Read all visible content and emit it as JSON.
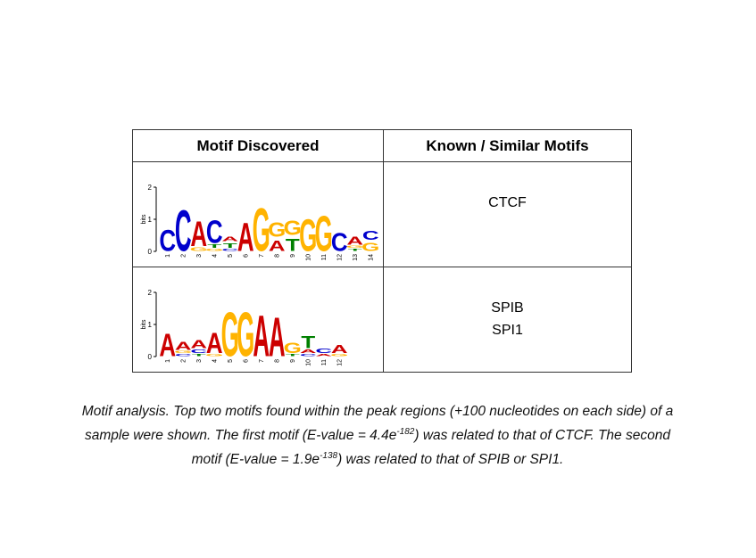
{
  "table": {
    "header_motif": "Motif Discovered",
    "header_known": "Known / Similar Motifs",
    "rows": [
      {
        "known": [
          "CTCF"
        ],
        "logo": {
          "y_label": "bits",
          "y_ticks": [
            "2",
            "1",
            "0"
          ],
          "positions": [
            "1",
            "2",
            "3",
            "4",
            "5",
            "6",
            "7",
            "8",
            "9",
            "10",
            "11",
            "12",
            "13",
            "14"
          ],
          "stacks": [
            [
              [
                "C",
                0.9
              ]
            ],
            [
              [
                "C",
                1.75
              ]
            ],
            [
              [
                "A",
                1.05
              ],
              [
                "G",
                0.15
              ]
            ],
            [
              [
                "C",
                0.95
              ],
              [
                "T",
                0.15
              ],
              [
                "G",
                0.1
              ]
            ],
            [
              [
                "T",
                0.2
              ],
              [
                "A",
                0.2
              ],
              [
                "C",
                0.1
              ]
            ],
            [
              [
                "A",
                1.2
              ]
            ],
            [
              [
                "G",
                1.8
              ]
            ],
            [
              [
                "G",
                0.6
              ],
              [
                "A",
                0.45
              ]
            ],
            [
              [
                "G",
                0.6
              ],
              [
                "T",
                0.5
              ]
            ],
            [
              [
                "G",
                1.35
              ]
            ],
            [
              [
                "G",
                1.5
              ]
            ],
            [
              [
                "C",
                0.75
              ]
            ],
            [
              [
                "A",
                0.35
              ],
              [
                "T",
                0.1
              ],
              [
                "G",
                0.1
              ]
            ],
            [
              [
                "C",
                0.4
              ],
              [
                "G",
                0.35
              ]
            ]
          ]
        }
      },
      {
        "known": [
          "SPIB",
          "SPI1"
        ],
        "logo": {
          "y_label": "bits",
          "y_ticks": [
            "2",
            "1",
            "0"
          ],
          "positions": [
            "1",
            "2",
            "3",
            "4",
            "5",
            "6",
            "7",
            "8",
            "9",
            "10",
            "11",
            "12"
          ],
          "stacks": [
            [
              [
                "A",
                0.95
              ]
            ],
            [
              [
                "A",
                0.35
              ],
              [
                "C",
                0.1
              ],
              [
                "G",
                0.1
              ]
            ],
            [
              [
                "A",
                0.35
              ],
              [
                "C",
                0.15
              ],
              [
                "T",
                0.1
              ]
            ],
            [
              [
                "A",
                0.85
              ],
              [
                "G",
                0.1
              ]
            ],
            [
              [
                "G",
                1.85
              ]
            ],
            [
              [
                "G",
                1.85
              ]
            ],
            [
              [
                "A",
                1.75
              ]
            ],
            [
              [
                "A",
                1.65
              ]
            ],
            [
              [
                "G",
                0.45
              ],
              [
                "T",
                0.1
              ]
            ],
            [
              [
                "T",
                0.5
              ],
              [
                "A",
                0.15
              ],
              [
                "C",
                0.1
              ]
            ],
            [
              [
                "C",
                0.2
              ],
              [
                "A",
                0.1
              ]
            ],
            [
              [
                "A",
                0.35
              ],
              [
                "G",
                0.1
              ]
            ]
          ]
        }
      }
    ]
  },
  "caption": {
    "text1": "Motif analysis.  Top two motifs found within the peak regions (+100 nucleotides on each side) of a sample were shown.  The first motif (E-value = 4.4e",
    "sup1": "-182",
    "text2": ") was related to that of CTCF.  The second motif (E-value = 1.9e",
    "sup2": "-138",
    "text3": ") was related to that of SPIB or SPI1."
  },
  "colors": {
    "A": "#cc0000",
    "C": "#0000cc",
    "G": "#ffb300",
    "T": "#008000"
  }
}
